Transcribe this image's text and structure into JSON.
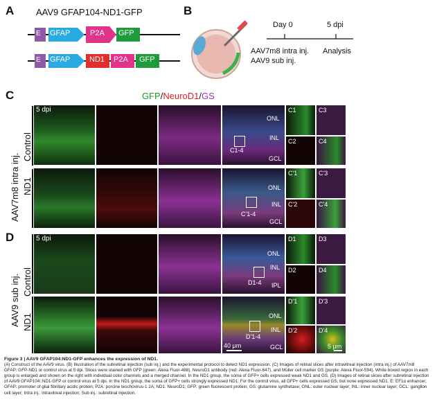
{
  "panels": {
    "A": "A",
    "B": "B",
    "C": "C",
    "D": "D"
  },
  "construct": {
    "title": "AAV9 GFAP104-ND1-GFP",
    "row1": [
      "E",
      "GFAP",
      "P2A",
      "GFP"
    ],
    "row2": [
      "E",
      "GFAP",
      "ND1",
      "P2A",
      "GFP"
    ]
  },
  "timeline": {
    "day0": "Day 0",
    "dpi5": "5 dpi",
    "inj1": "AAV7m8 intra inj.",
    "inj2": "AAV9 sub inj.",
    "analysis": "Analysis"
  },
  "legend": {
    "gfp": "GFP",
    "sep1": "/",
    "neuro": "NeuroD1",
    "sep2": "/",
    "gs": "GS"
  },
  "colors": {
    "gfp": "#1a9c2a",
    "neuro": "#e01e1e",
    "gs": "#9b2fb3",
    "cyan": "#29abe2",
    "pink": "#e0338a",
    "purple": "#8e5aa8",
    "green": "#1f9a3c"
  },
  "panelC": {
    "dpi": "5 dpi",
    "group": "AAV7m8 intra inj.",
    "rows": [
      "Control",
      "ND1"
    ],
    "layers1": [
      "ONL",
      "INL",
      "GCL"
    ],
    "layers2": [
      "ONL",
      "INL",
      "GCL"
    ],
    "box1": "C1-4",
    "box2": "C'1-4",
    "zoom1": [
      "C1",
      "C3",
      "C2",
      "C4"
    ],
    "zoom2": [
      "C'1",
      "C'3",
      "C'2",
      "C'4"
    ]
  },
  "panelD": {
    "dpi": "5 dpi",
    "group": "AAV9 sub inj.",
    "rows": [
      "Control",
      "ND1"
    ],
    "layers1": [
      "ONL",
      "INL",
      "IPL"
    ],
    "layers2": [
      "ONL",
      "INL",
      "GCL"
    ],
    "box1": "D1-4",
    "box2": "D'1-4",
    "zoom1": [
      "D1",
      "D3",
      "D2",
      "D4"
    ],
    "zoom2": [
      "D'1",
      "D'3",
      "D'2",
      "D'4"
    ],
    "scale1": "40 μm",
    "scale2": "5 μm"
  },
  "caption": {
    "title": "Figure 3 | AAV9 GFAP104:ND1-GFP enhances the expression of ND1.",
    "body": "(A) Construct of the AAV9 virus. (B) Illustration of the subretinal injection (sub inj.) and the experimental protocol to detect ND1 expression. (C) Images of retinal slices after intravitreal injection (intra inj.) of AAV7m8 GFAP::GFP-ND1 or control virus at 5 dpi. Slices were stained with GFP (green: Alexa Fluor-488), NeuroD1 antibody (red: Alexa Fluor-647), and Müller cell marker GS (purple: Alexa Fluor-594). White boxed region in each group is enlarged and shown on the right with individual color channels and a merged channel. In the ND1 group, the soma of GFP+ cells expressed weak ND1 and GS. (D) Images of retinal slices after subretinal injection of AAV9 GFAP104::ND1-GFP or control virus at 5 dpi. In the ND1 group, the soma of GFP+ cells strongly expressed ND1. For the control virus, all GFP+ cells expressed GS, but none expressed ND1. E: EF1α enhancer; GFAP: promoter of glial fibrillary acidic protein; P2A: porcine teschovirus-1 2A; ND1: NeuroD1; GFP: green fluorescent protein; GS: glutamine synthetase; ONL: outer nuclear layer; INL: inner nuclear layer; GCL: ganglion cell layer; Intra inj.: intravitreal injection; Sub inj.: subretinal injection."
  }
}
